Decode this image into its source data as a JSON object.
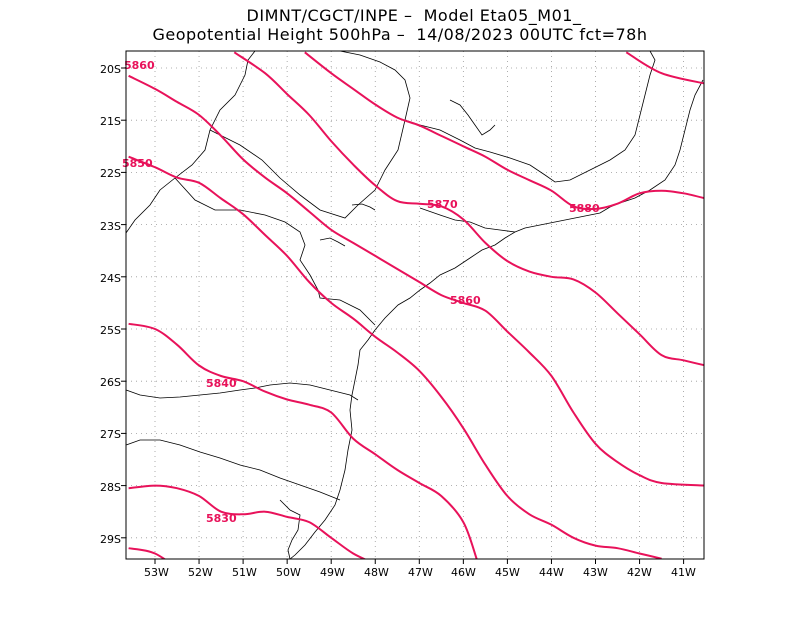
{
  "header": {
    "line1": "DIMNT/CGCT/INPE –  Model Eta05_M01_",
    "line2": "Geopotential Height 500hPa –  14/08/2023 00UTC fct=78h"
  },
  "map": {
    "lat_labels": [
      "20S",
      "21S",
      "22S",
      "23S",
      "24S",
      "25S",
      "26S",
      "27S",
      "28S",
      "29S"
    ],
    "lon_labels": [
      "53W",
      "52W",
      "51W",
      "50W",
      "49W",
      "48W",
      "47W",
      "46W",
      "45W",
      "44W",
      "43W",
      "42W",
      "41W"
    ],
    "contour_color": "#e8125a",
    "coast_color": "#000000",
    "grid": true
  },
  "chart_data": {
    "type": "contour",
    "variable": "Geopotential Height 500hPa",
    "contour_labels": [
      "5830",
      "5840",
      "5850",
      "5860",
      "5870",
      "5880"
    ],
    "contours": [
      {
        "value": 5830,
        "points": [
          [
            -53.6,
            -29.2
          ],
          [
            -53.0,
            -29.3
          ],
          [
            -52.3,
            -29.7
          ]
        ]
      },
      {
        "value": 5830,
        "points": [
          [
            -53.6,
            -28.05
          ],
          [
            -53.0,
            -28.0
          ],
          [
            -52.5,
            -28.05
          ],
          [
            -52.0,
            -28.2
          ],
          [
            -51.5,
            -28.5
          ],
          [
            -51.0,
            -28.55
          ],
          [
            -50.5,
            -28.5
          ],
          [
            -50.0,
            -28.6
          ],
          [
            -49.5,
            -28.7
          ],
          [
            -49.0,
            -29.0
          ],
          [
            -48.5,
            -29.3
          ],
          [
            -48.0,
            -29.5
          ]
        ]
      },
      {
        "value": 5840,
        "points": [
          [
            -53.6,
            -24.9
          ],
          [
            -53.0,
            -25.0
          ],
          [
            -52.5,
            -25.3
          ],
          [
            -52.0,
            -25.7
          ],
          [
            -51.5,
            -25.9
          ],
          [
            -51.0,
            -26.0
          ],
          [
            -50.5,
            -26.2
          ],
          [
            -50.0,
            -26.35
          ],
          [
            -49.5,
            -26.45
          ],
          [
            -49.0,
            -26.6
          ],
          [
            -48.5,
            -27.1
          ],
          [
            -48.0,
            -27.4
          ],
          [
            -47.5,
            -27.7
          ],
          [
            -47.0,
            -27.95
          ],
          [
            -46.5,
            -28.2
          ],
          [
            -46.0,
            -28.7
          ],
          [
            -45.7,
            -29.4
          ]
        ]
      },
      {
        "value": 5850,
        "points": [
          [
            -53.6,
            -21.7
          ],
          [
            -53.0,
            -21.9
          ],
          [
            -52.5,
            -22.1
          ],
          [
            -52.0,
            -22.2
          ],
          [
            -51.5,
            -22.5
          ],
          [
            -51.0,
            -22.8
          ],
          [
            -50.5,
            -23.2
          ],
          [
            -50.0,
            -23.6
          ],
          [
            -49.5,
            -24.1
          ],
          [
            -49.0,
            -24.5
          ],
          [
            -48.5,
            -24.8
          ],
          [
            -48.0,
            -25.15
          ],
          [
            -47.5,
            -25.45
          ],
          [
            -47.0,
            -25.8
          ],
          [
            -46.5,
            -26.3
          ],
          [
            -46.0,
            -26.9
          ],
          [
            -45.5,
            -27.6
          ],
          [
            -45.0,
            -28.2
          ],
          [
            -44.5,
            -28.55
          ],
          [
            -44.0,
            -28.75
          ],
          [
            -43.5,
            -29.0
          ],
          [
            -43.0,
            -29.15
          ],
          [
            -42.5,
            -29.2
          ],
          [
            -42.0,
            -29.3
          ],
          [
            -41.5,
            -29.4
          ]
        ]
      },
      {
        "value": 5860,
        "points": [
          [
            -53.6,
            -20.15
          ],
          [
            -53.0,
            -20.4
          ],
          [
            -52.5,
            -20.65
          ],
          [
            -52.0,
            -20.9
          ],
          [
            -51.5,
            -21.3
          ],
          [
            -51.0,
            -21.75
          ],
          [
            -50.5,
            -22.1
          ],
          [
            -50.0,
            -22.4
          ],
          [
            -49.5,
            -22.75
          ],
          [
            -49.0,
            -23.1
          ],
          [
            -48.5,
            -23.35
          ],
          [
            -48.0,
            -23.6
          ],
          [
            -47.5,
            -23.85
          ],
          [
            -47.0,
            -24.1
          ],
          [
            -46.5,
            -24.35
          ],
          [
            -46.0,
            -24.5
          ],
          [
            -45.5,
            -24.65
          ],
          [
            -45.0,
            -25.05
          ],
          [
            -44.5,
            -25.45
          ],
          [
            -44.0,
            -25.9
          ],
          [
            -43.5,
            -26.6
          ],
          [
            -43.0,
            -27.2
          ],
          [
            -42.5,
            -27.55
          ],
          [
            -42.0,
            -27.8
          ],
          [
            -41.5,
            -27.95
          ],
          [
            -40.5,
            -28.0
          ]
        ]
      },
      {
        "value": 5870,
        "points": [
          [
            -51.2,
            -19.7
          ],
          [
            -50.5,
            -20.1
          ],
          [
            -50.0,
            -20.5
          ],
          [
            -49.5,
            -20.9
          ],
          [
            -49.0,
            -21.4
          ],
          [
            -48.5,
            -21.85
          ],
          [
            -48.0,
            -22.25
          ],
          [
            -47.5,
            -22.55
          ],
          [
            -47.0,
            -22.6
          ],
          [
            -46.5,
            -22.65
          ],
          [
            -46.0,
            -22.9
          ],
          [
            -45.5,
            -23.35
          ],
          [
            -45.0,
            -23.7
          ],
          [
            -44.5,
            -23.9
          ],
          [
            -44.0,
            -24.0
          ],
          [
            -43.5,
            -24.05
          ],
          [
            -43.0,
            -24.3
          ],
          [
            -42.5,
            -24.7
          ],
          [
            -42.0,
            -25.1
          ],
          [
            -41.5,
            -25.5
          ],
          [
            -41.0,
            -25.6
          ],
          [
            -40.5,
            -25.7
          ]
        ]
      },
      {
        "value": 5880,
        "points": [
          [
            -49.6,
            -19.7
          ],
          [
            -49.0,
            -20.1
          ],
          [
            -48.5,
            -20.4
          ],
          [
            -48.0,
            -20.7
          ],
          [
            -47.5,
            -20.95
          ],
          [
            -47.0,
            -21.1
          ],
          [
            -46.5,
            -21.3
          ],
          [
            -46.0,
            -21.5
          ],
          [
            -45.5,
            -21.7
          ],
          [
            -45.0,
            -21.95
          ],
          [
            -44.5,
            -22.15
          ],
          [
            -44.0,
            -22.35
          ],
          [
            -43.5,
            -22.65
          ],
          [
            -43.0,
            -22.7
          ],
          [
            -42.5,
            -22.6
          ],
          [
            -42.0,
            -22.4
          ],
          [
            -41.5,
            -22.35
          ],
          [
            -41.0,
            -22.4
          ],
          [
            -40.5,
            -22.5
          ]
        ]
      },
      {
        "value": 5880,
        "points": [
          [
            -42.3,
            -19.7
          ],
          [
            -41.5,
            -20.1
          ],
          [
            -40.5,
            -20.3
          ]
        ]
      }
    ]
  }
}
